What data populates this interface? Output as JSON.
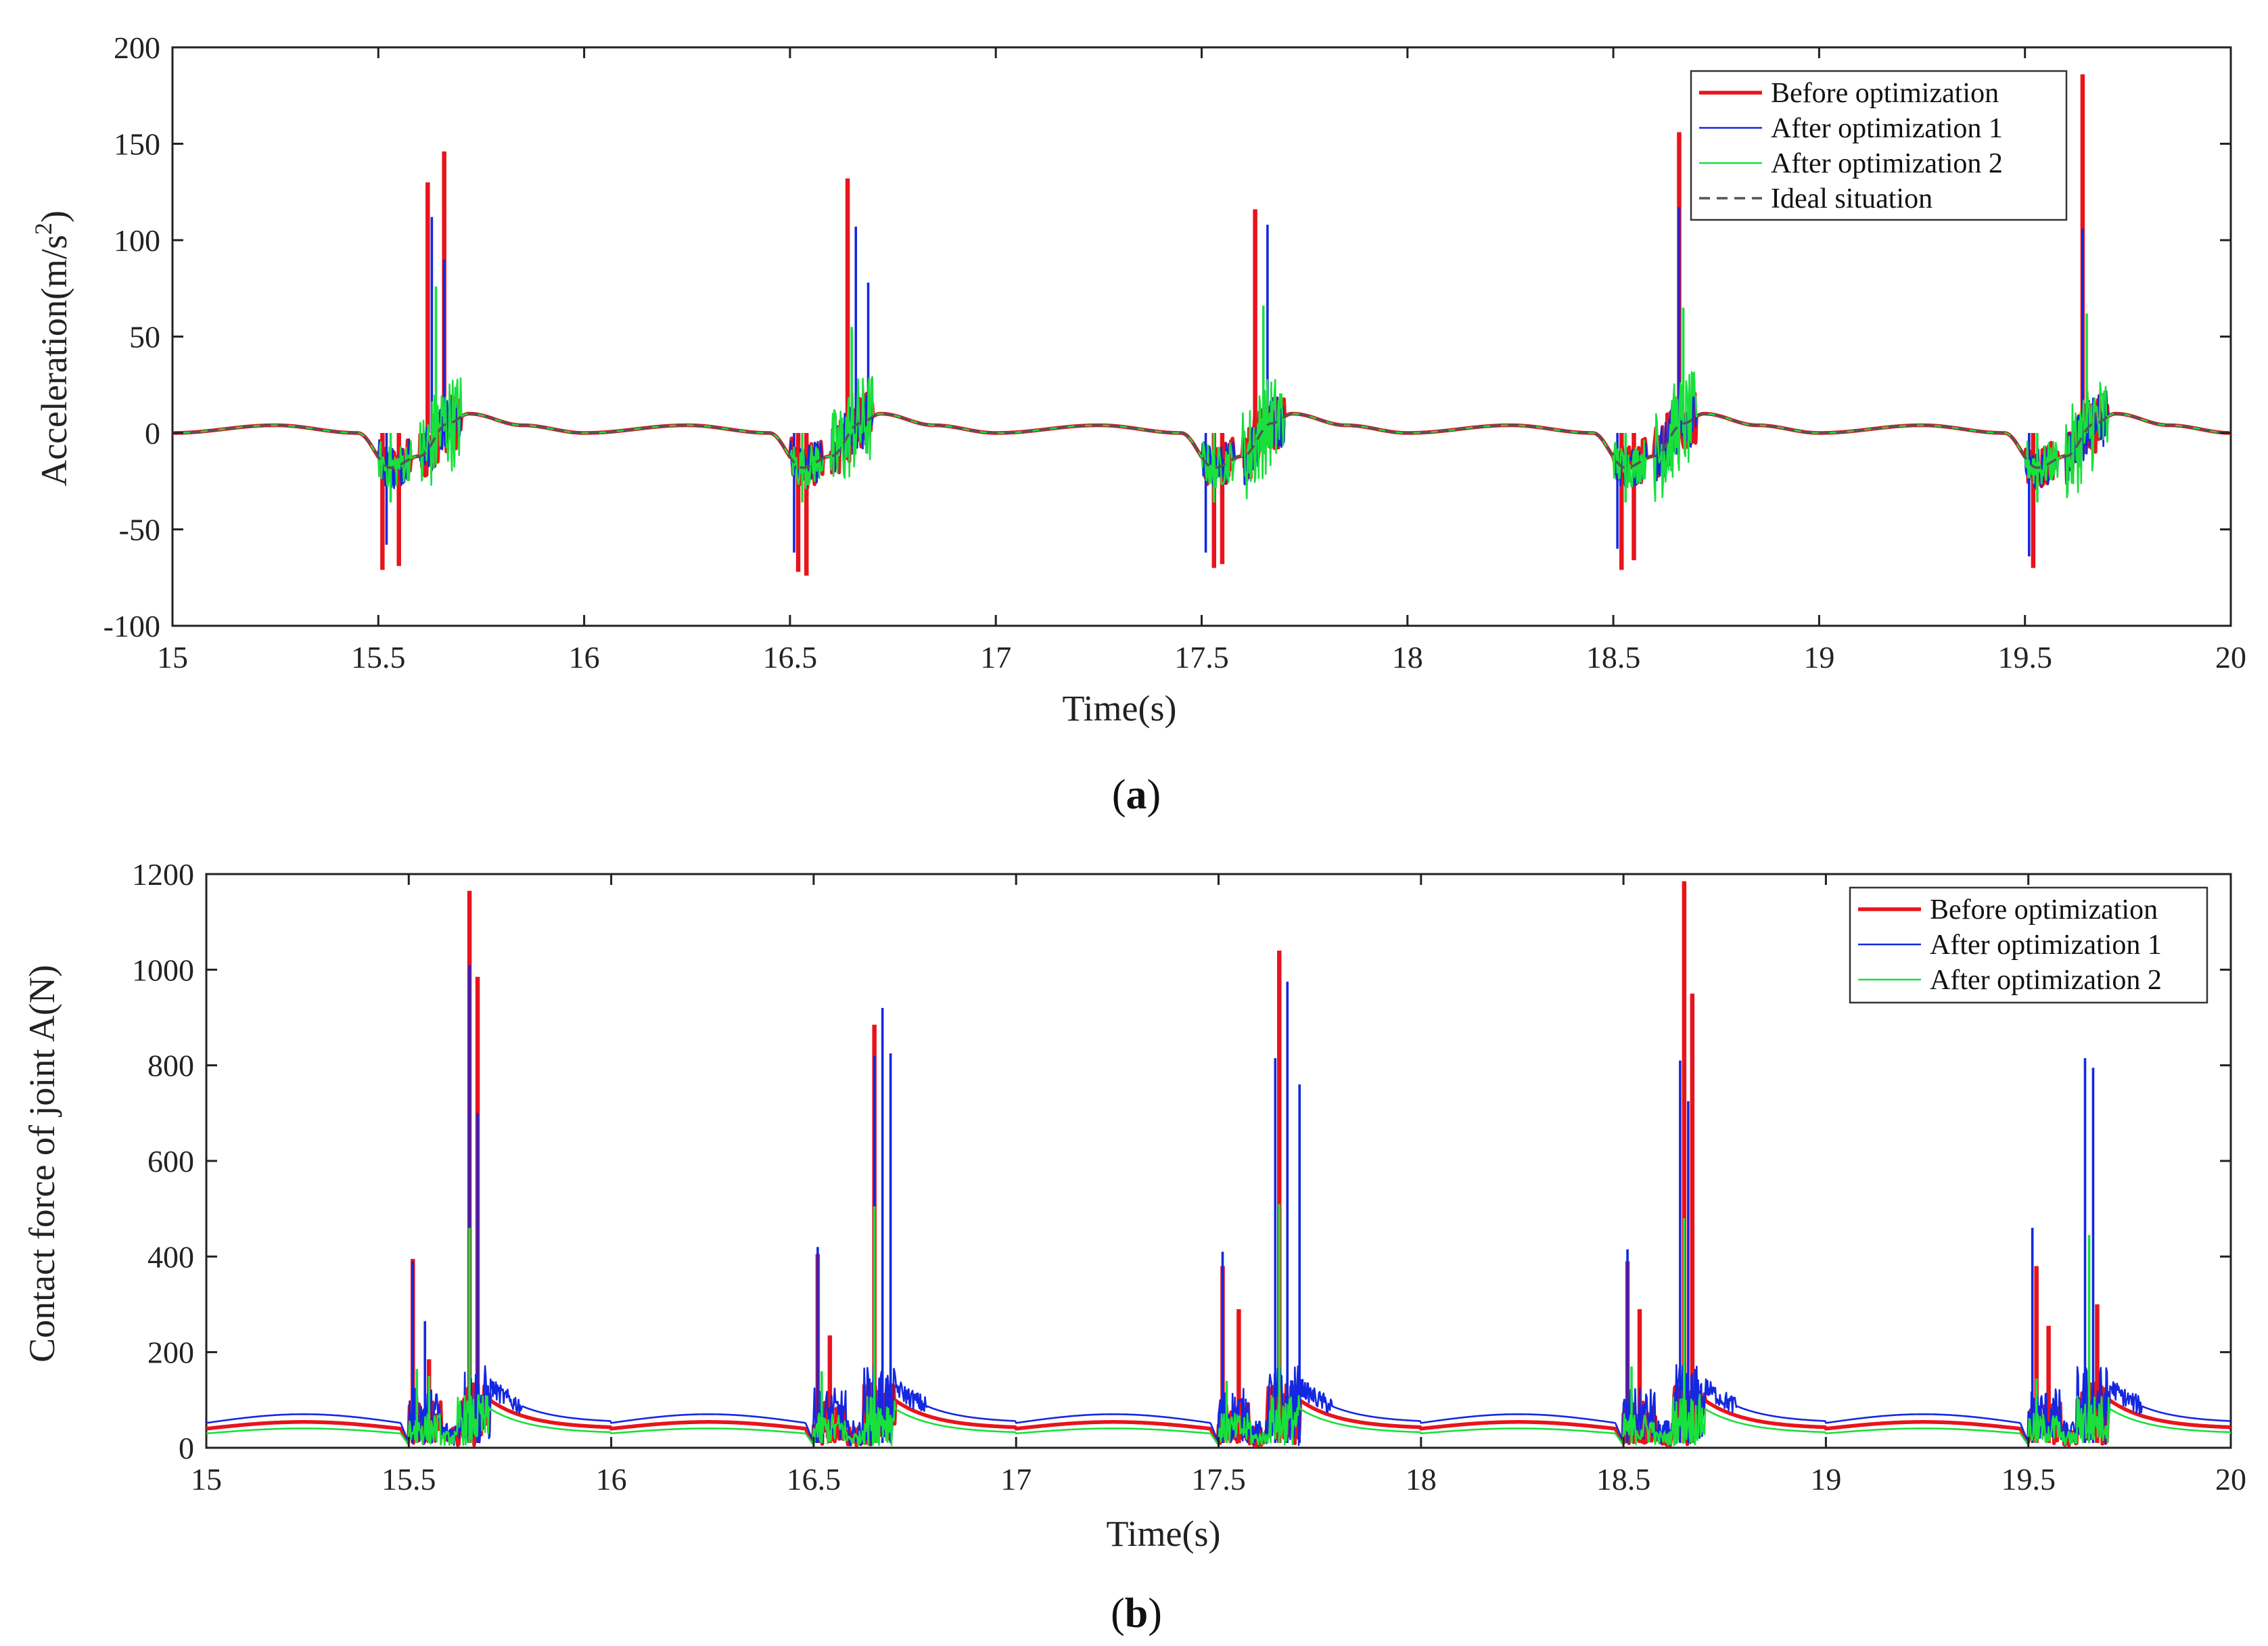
{
  "chart_data": [
    {
      "panel": "a",
      "type": "line",
      "caption_open": "(",
      "caption_letter": "a",
      "caption_close": ")",
      "xlabel": "Time(s)",
      "ylabel_prefix": "Acceleration(m/s",
      "ylabel_sup": "2",
      "ylabel_suffix": ")",
      "xlim": [
        15,
        20
      ],
      "ylim": [
        -100,
        200
      ],
      "xticks": [
        "15",
        "15.5",
        "16",
        "16.5",
        "17",
        "17.5",
        "18",
        "18.5",
        "19",
        "19.5",
        "20"
      ],
      "yticks": [
        "-100",
        "-50",
        "0",
        "50",
        "100",
        "150",
        "200"
      ],
      "legend_position": "top-right",
      "baseline": {
        "description": "smooth periodic ideal acceleration, period 1 s",
        "keypoints_within_period": [
          [
            0.0,
            0
          ],
          [
            0.25,
            4
          ],
          [
            0.45,
            0
          ],
          [
            0.53,
            -18
          ],
          [
            0.6,
            -12
          ],
          [
            0.67,
            5
          ],
          [
            0.72,
            10
          ],
          [
            0.85,
            4
          ],
          [
            1.0,
            0
          ]
        ]
      },
      "series": [
        {
          "name": "Before optimization",
          "color": "#e8141c",
          "style": "solid-thick",
          "peaks_pos": [
            [
              15.62,
              130
            ],
            [
              15.66,
              146
            ],
            [
              16.64,
              132
            ],
            [
              17.63,
              116
            ],
            [
              18.66,
              156
            ],
            [
              19.64,
              186
            ]
          ],
          "peaks_neg": [
            [
              15.51,
              -71
            ],
            [
              15.55,
              -69
            ],
            [
              16.52,
              -72
            ],
            [
              16.54,
              -74
            ],
            [
              17.53,
              -70
            ],
            [
              17.55,
              -68
            ],
            [
              18.52,
              -71
            ],
            [
              18.55,
              -66
            ],
            [
              19.52,
              -70
            ]
          ]
        },
        {
          "name": "After optimization 1",
          "color": "#1428e0",
          "style": "solid-thin",
          "peaks_pos": [
            [
              15.63,
              112
            ],
            [
              15.66,
              90
            ],
            [
              16.66,
              107
            ],
            [
              16.69,
              78
            ],
            [
              17.66,
              108
            ],
            [
              18.66,
              117
            ],
            [
              19.64,
              106
            ]
          ],
          "peaks_neg": [
            [
              15.52,
              -58
            ],
            [
              16.51,
              -62
            ],
            [
              17.51,
              -62
            ],
            [
              18.51,
              -60
            ],
            [
              19.51,
              -64
            ]
          ]
        },
        {
          "name": "After optimization 2",
          "color": "#19e03c",
          "style": "solid-thin",
          "peaks_pos": [
            [
              15.64,
              76
            ],
            [
              16.65,
              55
            ],
            [
              17.65,
              66
            ],
            [
              18.67,
              65
            ],
            [
              19.65,
              62
            ]
          ],
          "peaks_neg": [
            [
              15.53,
              -36
            ],
            [
              16.53,
              -36
            ],
            [
              17.53,
              -36
            ],
            [
              18.53,
              -36
            ],
            [
              19.53,
              -36
            ]
          ]
        },
        {
          "name": "Ideal situation",
          "color": "#555555",
          "style": "dashed",
          "peaks_pos": [],
          "peaks_neg": []
        }
      ]
    },
    {
      "panel": "b",
      "type": "line",
      "caption_open": "(",
      "caption_letter": "b",
      "caption_close": ")",
      "xlabel": "Time(s)",
      "ylabel": "Contact force of joint A(N)",
      "xlim": [
        15,
        20
      ],
      "ylim": [
        0,
        1200
      ],
      "xticks": [
        "15",
        "15.5",
        "16",
        "16.5",
        "17",
        "17.5",
        "18",
        "18.5",
        "19",
        "19.5",
        "20"
      ],
      "yticks": [
        "0",
        "200",
        "400",
        "600",
        "800",
        "1000",
        "1200"
      ],
      "legend_position": "top-right",
      "series": [
        {
          "name": "Before optimization",
          "color": "#e8141c",
          "style": "solid-thick",
          "baseline_level": 40,
          "post_impact_level": 100,
          "peaks": [
            [
              15.51,
              395
            ],
            [
              15.55,
              185
            ],
            [
              15.65,
              1165
            ],
            [
              15.67,
              985
            ],
            [
              16.51,
              405
            ],
            [
              16.54,
              235
            ],
            [
              16.65,
              885
            ],
            [
              17.51,
              380
            ],
            [
              17.55,
              290
            ],
            [
              17.65,
              1040
            ],
            [
              18.51,
              390
            ],
            [
              18.54,
              290
            ],
            [
              18.65,
              1185
            ],
            [
              18.67,
              950
            ],
            [
              19.52,
              380
            ],
            [
              19.55,
              255
            ],
            [
              19.67,
              300
            ]
          ]
        },
        {
          "name": "After optimization 1",
          "color": "#1428e0",
          "style": "solid-thin",
          "baseline_level": 52,
          "post_impact_level": 130,
          "peaks": [
            [
              15.51,
              390
            ],
            [
              15.54,
              265
            ],
            [
              15.65,
              1010
            ],
            [
              15.67,
              700
            ],
            [
              16.51,
              420
            ],
            [
              16.65,
              820
            ],
            [
              16.67,
              920
            ],
            [
              16.69,
              825
            ],
            [
              17.51,
              410
            ],
            [
              17.64,
              815
            ],
            [
              17.67,
              975
            ],
            [
              17.7,
              760
            ],
            [
              18.51,
              415
            ],
            [
              18.64,
              810
            ],
            [
              18.66,
              725
            ],
            [
              19.51,
              460
            ],
            [
              19.64,
              815
            ],
            [
              19.66,
              795
            ]
          ]
        },
        {
          "name": "After optimization 2",
          "color": "#19e03c",
          "style": "solid-thin",
          "baseline_level": 30,
          "post_impact_level": 82,
          "peaks": [
            [
              15.52,
              165
            ],
            [
              15.55,
              150
            ],
            [
              15.65,
              460
            ],
            [
              16.52,
              160
            ],
            [
              16.65,
              505
            ],
            [
              17.52,
              140
            ],
            [
              17.65,
              510
            ],
            [
              18.52,
              170
            ],
            [
              18.65,
              480
            ],
            [
              19.52,
              145
            ],
            [
              19.65,
              445
            ]
          ]
        }
      ]
    }
  ]
}
